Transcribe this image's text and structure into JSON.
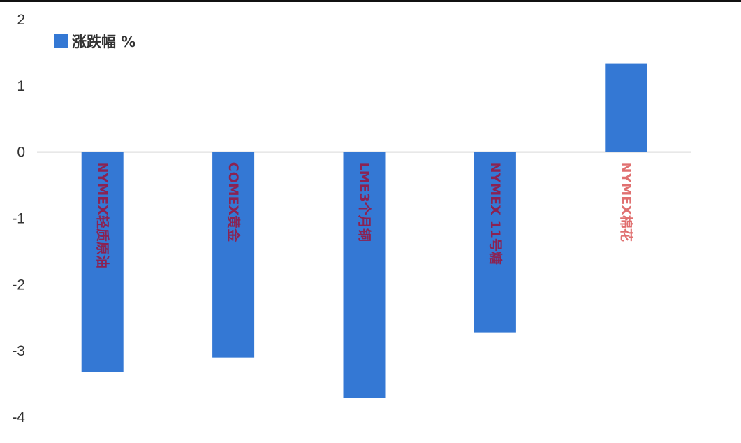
{
  "chart_data": {
    "type": "bar",
    "categories": [
      "NYMEX轻质原油",
      "COMEX黄金",
      "LME3个月铜",
      "NYMEX 11号糖",
      "NYMEX棉花"
    ],
    "series": [
      {
        "name": "涨跌幅 %",
        "values": [
          -3.32,
          -3.1,
          -3.71,
          -2.72,
          1.34
        ]
      }
    ],
    "ylim": [
      -4,
      2
    ],
    "yticks": [
      2,
      1,
      0,
      -1,
      -2,
      -3,
      -4
    ],
    "title": "",
    "xlabel": "",
    "ylabel": "",
    "grid": false,
    "legend_position": "top-left",
    "colors": {
      "bar": "#3478d4",
      "label_on_bar": "#8b2252",
      "label_off_bar": "#e07070",
      "axis": "#d9d9d9",
      "top_rule": "#111111"
    }
  }
}
